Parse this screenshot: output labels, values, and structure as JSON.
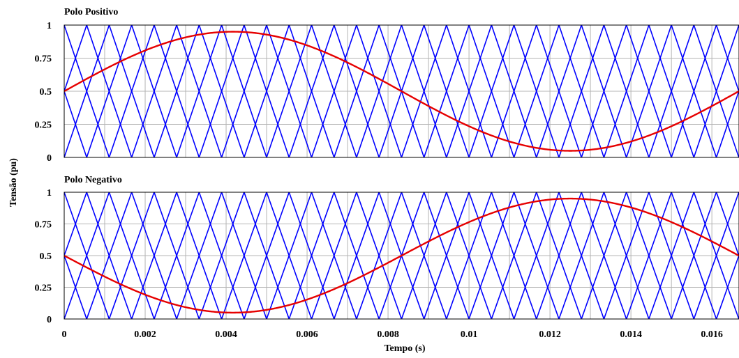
{
  "chart_data": {
    "type": "line",
    "ylabel": "Tensão (pu)",
    "xlabel": "Tempo (s)",
    "x_ticks": [
      "0",
      "0.002",
      "0.004",
      "0.006",
      "0.008",
      "0.01",
      "0.012",
      "0.014",
      "0.016"
    ],
    "y_ticks": [
      "0",
      "0.25",
      "0.5",
      "0.75",
      "1"
    ],
    "xlim": [
      0,
      0.01667
    ],
    "ylim": [
      0,
      1
    ],
    "grid": true,
    "colors": {
      "carrier": "#0000ff",
      "reference": "#e60000"
    },
    "panels": [
      {
        "title": "Polo Positivo",
        "series": [
          {
            "role": "carriers",
            "shape": "triangular",
            "count": 4,
            "vertical_spacing": 0.25,
            "period_s": 0.0022222,
            "phases": [
              0,
              0.25,
              0.5,
              0.75
            ],
            "color": "#0000ff"
          },
          {
            "role": "reference",
            "shape": "sinusoidal",
            "offset": 0.5,
            "amplitude": 0.45,
            "frequency_hz": 60,
            "phase_deg": 0,
            "color": "#e60000",
            "x": [
              0,
              0.002,
              0.00417,
              0.006,
              0.008,
              0.01,
              0.0125,
              0.014,
              0.01667
            ],
            "y": [
              0.5,
              0.8,
              0.95,
              0.87,
              0.5,
              0.24,
              0.05,
              0.14,
              0.5
            ]
          }
        ]
      },
      {
        "title": "Polo Negativo",
        "series": [
          {
            "role": "carriers",
            "shape": "triangular",
            "count": 4,
            "vertical_spacing": 0.25,
            "period_s": 0.0022222,
            "phases": [
              0,
              0.25,
              0.5,
              0.75
            ],
            "color": "#0000ff"
          },
          {
            "role": "reference",
            "shape": "sinusoidal",
            "offset": 0.5,
            "amplitude": -0.45,
            "frequency_hz": 60,
            "phase_deg": 0,
            "color": "#e60000",
            "x": [
              0,
              0.002,
              0.00417,
              0.006,
              0.008,
              0.01,
              0.0125,
              0.014,
              0.01667
            ],
            "y": [
              0.5,
              0.2,
              0.05,
              0.13,
              0.5,
              0.76,
              0.95,
              0.86,
              0.5
            ]
          }
        ]
      }
    ]
  }
}
